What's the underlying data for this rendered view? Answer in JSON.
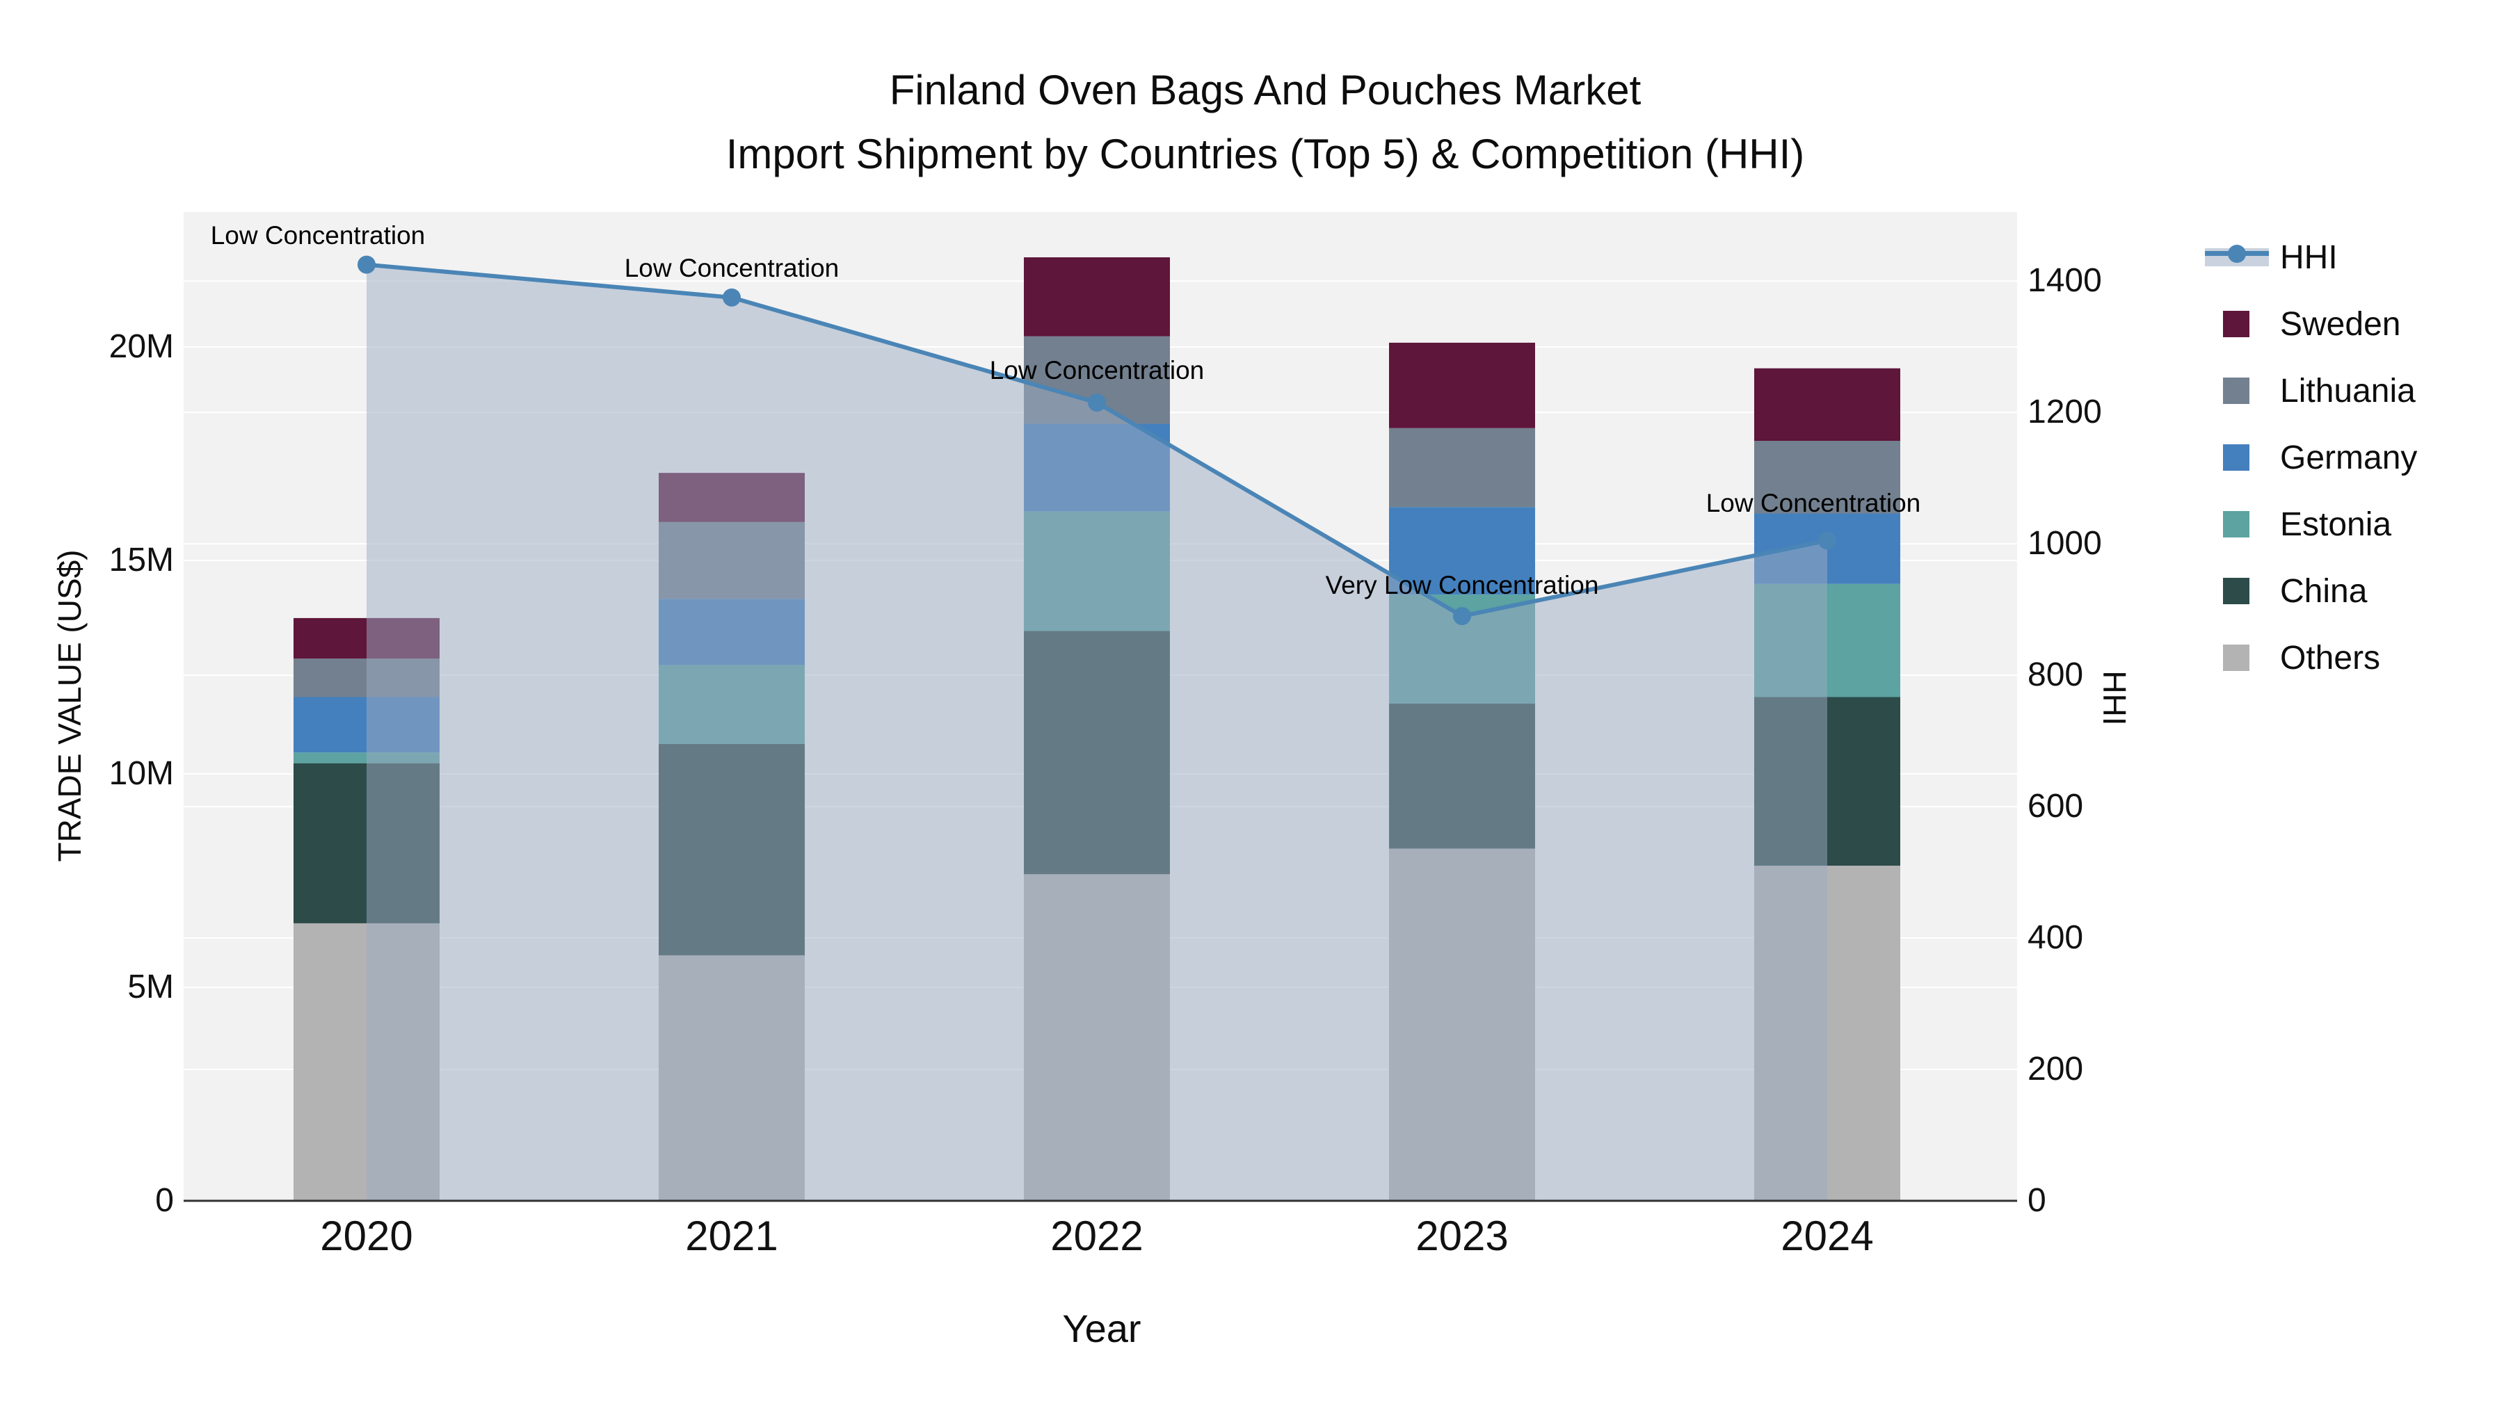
{
  "title": {
    "line1": "Finland Oven Bags And Pouches Market",
    "line2": "Import Shipment by Countries (Top 5) & Competition (HHI)"
  },
  "chart_data": {
    "type": "bar",
    "subtype": "stacked-bars-with-line-overlay",
    "title": "Finland Oven Bags And Pouches Market Import Shipment by Countries (Top 5) & Competition (HHI)",
    "xlabel": "Year",
    "ylabel_left": "TRADE VALUE (US$)",
    "ylabel_right": "HHI",
    "categories": [
      "2020",
      "2021",
      "2022",
      "2023",
      "2024"
    ],
    "values_unit": "millions of US$",
    "series": [
      {
        "name": "Others",
        "color": "#B3B3B3",
        "values": [
          6.5,
          5.75,
          7.65,
          8.25,
          7.85
        ]
      },
      {
        "name": "China",
        "color": "#2C4B49",
        "values": [
          3.75,
          4.95,
          5.7,
          3.4,
          3.95
        ]
      },
      {
        "name": "Estonia",
        "color": "#5CA3A1",
        "values": [
          0.25,
          1.85,
          2.8,
          2.55,
          2.65
        ]
      },
      {
        "name": "Germany",
        "color": "#4480BD",
        "values": [
          1.3,
          1.55,
          2.05,
          2.05,
          1.65
        ]
      },
      {
        "name": "Lithuania",
        "color": "#73808F",
        "values": [
          0.9,
          1.8,
          2.05,
          1.85,
          1.7
        ]
      },
      {
        "name": "Sweden",
        "color": "#5E163A",
        "values": [
          0.95,
          1.15,
          1.85,
          2.0,
          1.7
        ]
      }
    ],
    "bar_totals_millions": [
      13.65,
      17.05,
      22.1,
      20.1,
      19.5
    ],
    "line_series": {
      "name": "HHI",
      "color": "#4A85B6",
      "area_fill": "rgba(155,172,196,0.5)",
      "values": [
        1425,
        1375,
        1215,
        890,
        1005
      ],
      "annotations": [
        "Low Concentration",
        "Low Concentration",
        "Low Concentration",
        "Very Low Concentration",
        "Low Concentration"
      ]
    },
    "yaxis_left": {
      "ticks": [
        "0",
        "5M",
        "10M",
        "15M",
        "20M"
      ],
      "tick_values_millions": [
        0,
        5,
        10,
        15,
        20
      ],
      "range_millions": [
        0,
        23.16
      ],
      "grid": true
    },
    "yaxis_right": {
      "ticks": [
        "0",
        "200",
        "400",
        "600",
        "800",
        "1000",
        "1200",
        "1400"
      ],
      "tick_values": [
        0,
        200,
        400,
        600,
        800,
        1000,
        1200,
        1400
      ],
      "range": [
        0,
        1505
      ],
      "grid": true
    },
    "legend_position": "right",
    "legend": [
      "HHI",
      "Sweden",
      "Lithuania",
      "Germany",
      "Estonia",
      "China",
      "Others"
    ],
    "plot_bg_color": "#F2F2F2",
    "grid_color": "#FFFFFF"
  }
}
